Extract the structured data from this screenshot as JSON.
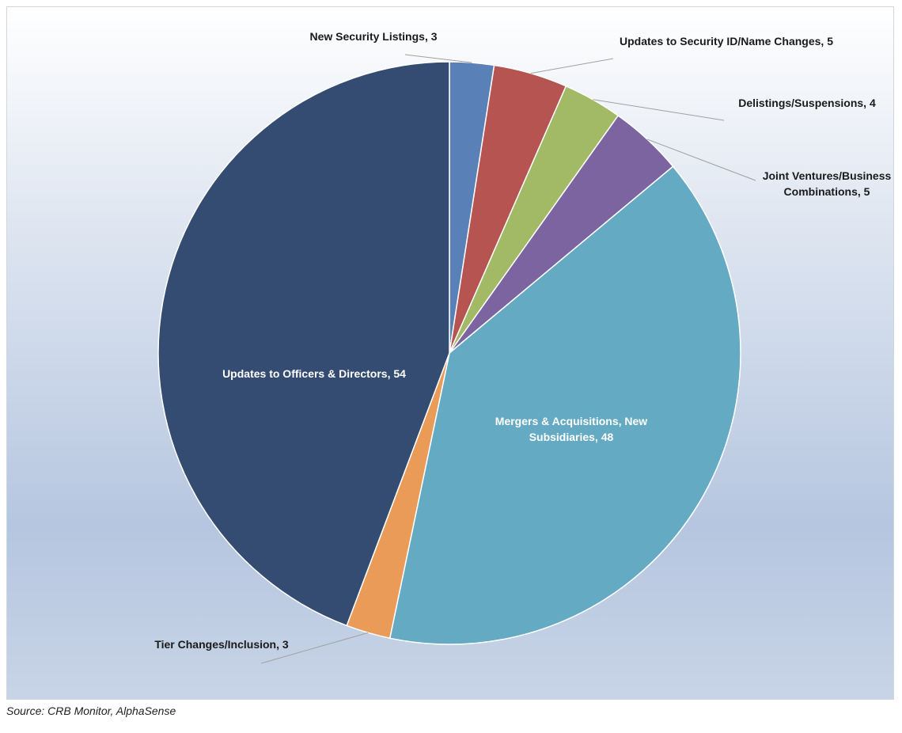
{
  "chart_data": {
    "type": "pie",
    "labels": [
      "New Security Listings, 3",
      "Updates to Security ID/Name Changes, 5",
      "Delistings/Suspensions, 4",
      "Joint Ventures/Business Combinations, 5",
      "Mergers & Acquisitions, New Subsidiaries, 48",
      "Tier Changes/Inclusion, 3",
      "Updates to Officers & Directors, 54"
    ],
    "values": [
      3,
      5,
      4,
      5,
      48,
      3,
      54
    ],
    "colors": [
      "#5a80b8",
      "#b55450",
      "#a2ba65",
      "#7b64a0",
      "#65aac3",
      "#e99b57",
      "#344c71"
    ],
    "source": "Source: CRB Monitor, AlphaSense"
  }
}
